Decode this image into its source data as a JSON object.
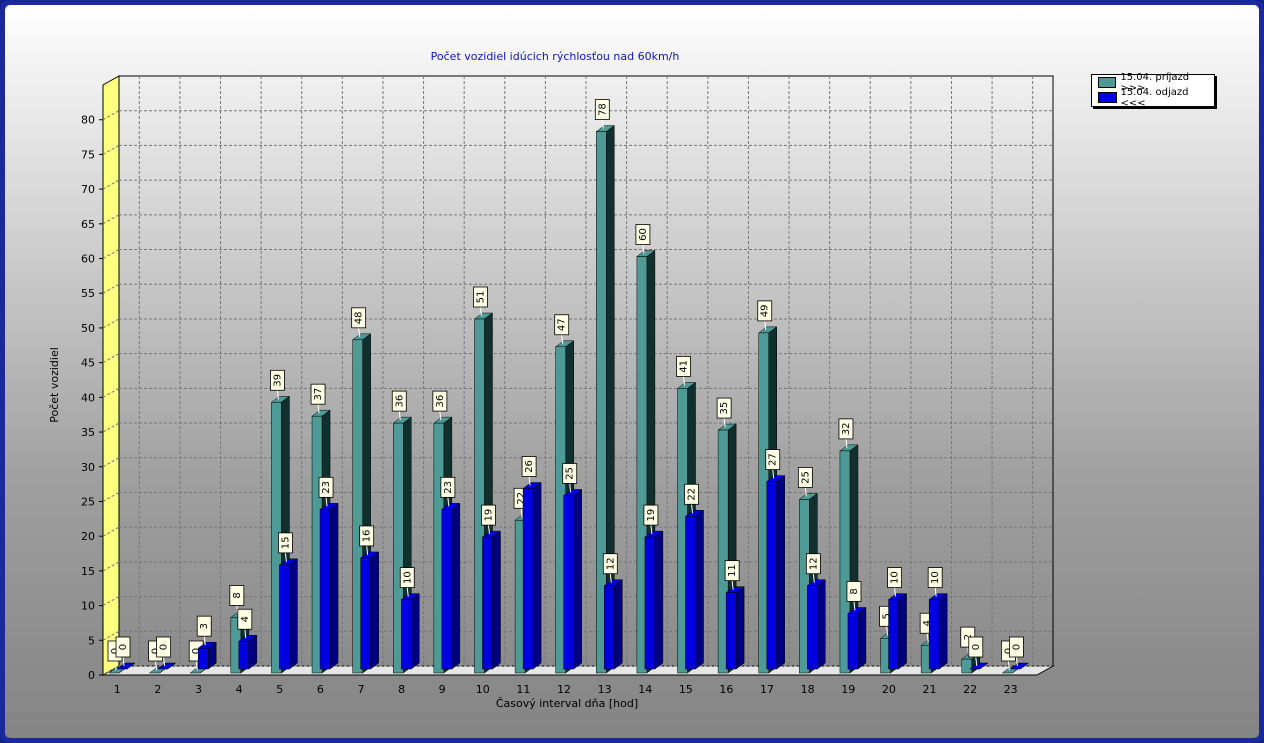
{
  "window": {
    "background": "#1a2a9a"
  },
  "chart_data": {
    "type": "bar",
    "title": "Počet vozidiel idúcich rýchlosťou nad 60km/h",
    "xlabel": "Časový interval dňa [hod]",
    "ylabel": "Počet vozidiel",
    "ylim": [
      0,
      85
    ],
    "yticks": [
      0,
      5,
      10,
      15,
      20,
      25,
      30,
      35,
      40,
      45,
      50,
      55,
      60,
      65,
      70,
      75,
      80
    ],
    "categories": [
      "1",
      "2",
      "3",
      "4",
      "5",
      "6",
      "7",
      "8",
      "9",
      "10",
      "11",
      "12",
      "13",
      "14",
      "15",
      "16",
      "17",
      "18",
      "19",
      "20",
      "21",
      "22",
      "23"
    ],
    "grid": true,
    "legend_position": "top-right",
    "series": [
      {
        "name": "15.04. príjazd >>>",
        "color": "#4e9a96",
        "side_color": "#0f302d",
        "values": [
          0,
          0,
          0,
          8,
          39,
          37,
          48,
          36,
          36,
          51,
          22,
          47,
          78,
          60,
          41,
          35,
          49,
          25,
          32,
          5,
          4,
          2,
          0
        ]
      },
      {
        "name": "15.04. odjazd <<<",
        "color": "#0000e0",
        "side_color": "#000080",
        "values": [
          0,
          0,
          3,
          4,
          15,
          23,
          16,
          10,
          23,
          19,
          26,
          25,
          12,
          19,
          22,
          11,
          27,
          12,
          8,
          10,
          10,
          0,
          0
        ]
      }
    ]
  }
}
